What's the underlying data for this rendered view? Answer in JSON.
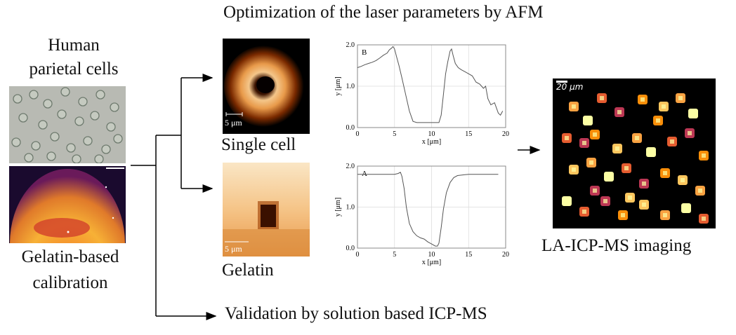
{
  "title": "Optimization of the laser parameters by AFM",
  "left": {
    "top_label_line1": "Human",
    "top_label_line2": "parietal cells",
    "bottom_label_line1": "Gelatin-based",
    "bottom_label_line2": "calibration"
  },
  "afm": {
    "single_cell_label": "Single cell",
    "gelatin_label": "Gelatin",
    "scale_single": "5 μm",
    "scale_gelatin": "5 μm"
  },
  "validation_label": "Validation by solution based ICP-MS",
  "imaging": {
    "label": "LA-ICP-MS imaging",
    "scale": "20 μm"
  },
  "colors": {
    "line": "#000000",
    "plot_line": "#555555",
    "grid": "#dddddd",
    "inferno_dark": "#0b0418",
    "inferno_mid": "#b8336a",
    "inferno_bright": "#fcffa4"
  },
  "chart_data": [
    {
      "type": "line",
      "panel_label": "B",
      "xlabel": "x [μm]",
      "ylabel": "y [μm]",
      "xlim": [
        0,
        20
      ],
      "ylim": [
        0,
        2
      ],
      "xticks": [
        "0",
        "5",
        "10",
        "15",
        "20"
      ],
      "yticks": [
        "0.0",
        "1.0",
        "2.0"
      ],
      "x": [
        0,
        0.5,
        1,
        1.5,
        2,
        2.5,
        3,
        3.5,
        4,
        4.3,
        4.6,
        4.8,
        5,
        5.3,
        5.6,
        6,
        6.5,
        7,
        7.5,
        8,
        8.5,
        9,
        9.5,
        10,
        10.5,
        11,
        11.3,
        11.6,
        11.9,
        12.2,
        12.5,
        12.7,
        12.9,
        13.2,
        13.6,
        14,
        14.5,
        15,
        15.5,
        16,
        16.5,
        17,
        17.3,
        17.6,
        18,
        18.5,
        19,
        19.3,
        19.6
      ],
      "y": [
        1.45,
        1.48,
        1.52,
        1.55,
        1.58,
        1.62,
        1.68,
        1.75,
        1.8,
        1.88,
        1.92,
        1.96,
        1.9,
        1.7,
        1.5,
        1.2,
        0.8,
        0.4,
        0.15,
        0.12,
        0.12,
        0.12,
        0.12,
        0.12,
        0.12,
        0.12,
        0.3,
        0.8,
        1.3,
        1.6,
        1.85,
        1.9,
        1.75,
        1.55,
        1.45,
        1.4,
        1.35,
        1.3,
        1.25,
        1.1,
        1.05,
        0.95,
        1.0,
        0.7,
        0.55,
        0.6,
        0.35,
        0.3,
        0.4
      ]
    },
    {
      "type": "line",
      "panel_label": "A",
      "xlabel": "x [μm]",
      "ylabel": "y [μm]",
      "xlim": [
        0,
        20
      ],
      "ylim": [
        0,
        2
      ],
      "xticks": [
        "0",
        "5",
        "10",
        "15",
        "20"
      ],
      "yticks": [
        "0.0",
        "1.0",
        "2.0"
      ],
      "x": [
        0,
        1,
        2,
        3,
        4,
        5,
        5.5,
        5.8,
        6,
        6.3,
        6.6,
        7,
        7.5,
        8,
        8.5,
        9,
        9.5,
        10,
        10.5,
        10.8,
        11,
        11.3,
        11.6,
        12,
        12.5,
        13,
        13.5,
        14,
        14.5,
        15,
        16,
        17,
        18,
        19
      ],
      "y": [
        1.8,
        1.8,
        1.8,
        1.8,
        1.8,
        1.8,
        1.82,
        1.85,
        1.75,
        1.45,
        1.0,
        0.6,
        0.4,
        0.3,
        0.25,
        0.22,
        0.15,
        0.1,
        0.05,
        0.05,
        0.12,
        0.5,
        0.95,
        1.35,
        1.6,
        1.72,
        1.77,
        1.78,
        1.79,
        1.8,
        1.8,
        1.8,
        1.8,
        1.8
      ]
    }
  ]
}
